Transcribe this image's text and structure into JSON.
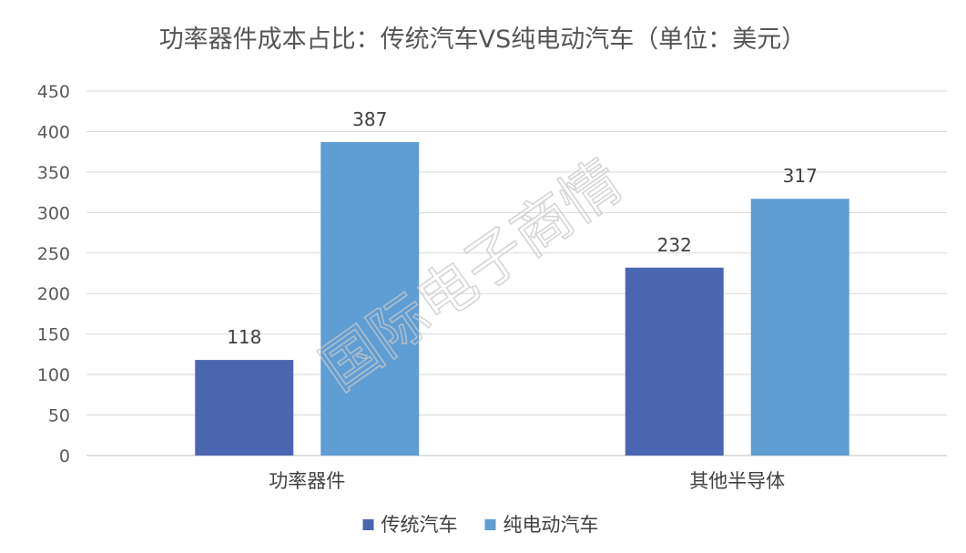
{
  "chart_data": {
    "type": "bar",
    "title": "功率器件成本占比：传统汽车VS纯电动汽车（单位：美元）",
    "xlabel": "",
    "ylabel": "",
    "categories": [
      "功率器件",
      "其他半导体"
    ],
    "series": [
      {
        "name": "传统汽车",
        "values": [
          118,
          232
        ],
        "color": "#4a66b0"
      },
      {
        "name": "纯电动汽车",
        "values": [
          387,
          317
        ],
        "color": "#5f9dd3"
      }
    ],
    "ylim": [
      0,
      450
    ],
    "yticks": [
      0,
      50,
      100,
      150,
      200,
      250,
      300,
      350,
      400,
      450
    ],
    "grid": true,
    "legend_position": "bottom-center",
    "data_labels": true
  },
  "watermark": {
    "text": "国际电子商情"
  }
}
